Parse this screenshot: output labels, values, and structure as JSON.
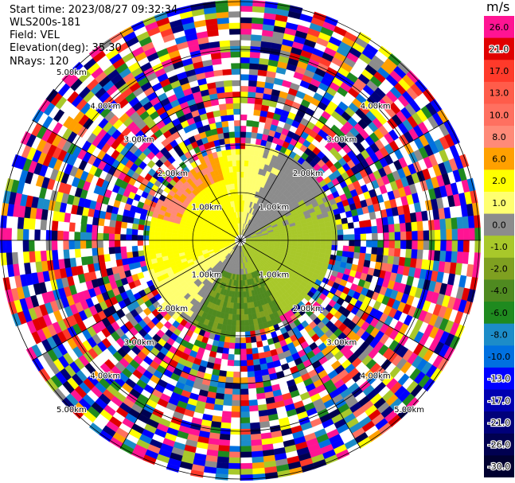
{
  "header": {
    "start_time": "Start time: 2023/08/27 09:32:34",
    "instrument": "WLS200s-181",
    "field": "Field: VEL",
    "elevation": "Elevation(deg): 35.30",
    "nrays": "NRays: 120"
  },
  "chart_data": {
    "type": "heatmap",
    "subtype": "polar-ppi",
    "unit": "m/s",
    "nrays": 120,
    "elevation_deg": 35.3,
    "range_rings": [
      {
        "label": "1.00km",
        "label_position": "top-left"
      },
      {
        "label": "1.00km",
        "label_position": "bottom-right"
      },
      {
        "label": "1.00km",
        "label_position": "bottom-left"
      },
      {
        "label": "1.00km",
        "label_position": "top-right"
      },
      {
        "label": "2.00km",
        "label_position": "top-left"
      },
      {
        "label": "2.00km",
        "label_position": "bottom-left"
      },
      {
        "label": "2.00km",
        "label_position": "bottom-right"
      },
      {
        "label": "2.00km",
        "label_position": "top-right"
      },
      {
        "label": "3.00km",
        "label_position": "top-left"
      },
      {
        "label": "3.00km",
        "label_position": "bottom-left"
      },
      {
        "label": "3.00km",
        "label_position": "bottom-right"
      },
      {
        "label": "3.00km",
        "label_position": "top-right"
      },
      {
        "label": "4.00km",
        "label_position": "top-left"
      },
      {
        "label": "4.00km",
        "label_position": "bottom-left"
      },
      {
        "label": "4.00km",
        "label_position": "bottom-right"
      },
      {
        "label": "4.00km",
        "label_position": "top-right"
      },
      {
        "label": "5.00km",
        "label_position": "top-left"
      },
      {
        "label": "5.00km",
        "label_position": "bottom-left"
      },
      {
        "label": "5.00km",
        "label_position": "bottom-right"
      }
    ],
    "colorbar": {
      "title": "m/s",
      "levels": [
        {
          "label": "26.0",
          "value": 26.0,
          "color": "#ff1493"
        },
        {
          "label": "21.0",
          "value": 21.0,
          "color": "#e00000"
        },
        {
          "label": "17.0",
          "value": 17.0,
          "color": "#ff3a2a"
        },
        {
          "label": "13.0",
          "value": 13.0,
          "color": "#ff5c4a"
        },
        {
          "label": "10.0",
          "value": 10.0,
          "color": "#ff7060"
        },
        {
          "label": "8.0",
          "value": 8.0,
          "color": "#ff8a78"
        },
        {
          "label": "6.0",
          "value": 6.0,
          "color": "#ffa000"
        },
        {
          "label": "2.0",
          "value": 2.0,
          "color": "#ffff00"
        },
        {
          "label": "1.0",
          "value": 1.0,
          "color": "#ffff70"
        },
        {
          "label": "0.0",
          "value": 0.0,
          "color": "#8c8c8c"
        },
        {
          "label": "-1.0",
          "value": -1.0,
          "color": "#a8c82a"
        },
        {
          "label": "-2.0",
          "value": -2.0,
          "color": "#7fa020"
        },
        {
          "label": "-4.0",
          "value": -4.0,
          "color": "#4f8a20"
        },
        {
          "label": "-6.0",
          "value": -6.0,
          "color": "#1f8a1f"
        },
        {
          "label": "-8.0",
          "value": -8.0,
          "color": "#1c8cc8"
        },
        {
          "label": "-10.0",
          "value": -10.0,
          "color": "#0070e0"
        },
        {
          "label": "-13.0",
          "value": -13.0,
          "color": "#0000ff"
        },
        {
          "label": "-17.0",
          "value": -17.0,
          "color": "#0000b0"
        },
        {
          "label": "-21.0",
          "value": -21.0,
          "color": "#00007a"
        },
        {
          "label": "-26.0",
          "value": -26.0,
          "color": "#000050"
        },
        {
          "label": "-30.0",
          "value": -30.0,
          "color": "#000030"
        }
      ]
    }
  }
}
